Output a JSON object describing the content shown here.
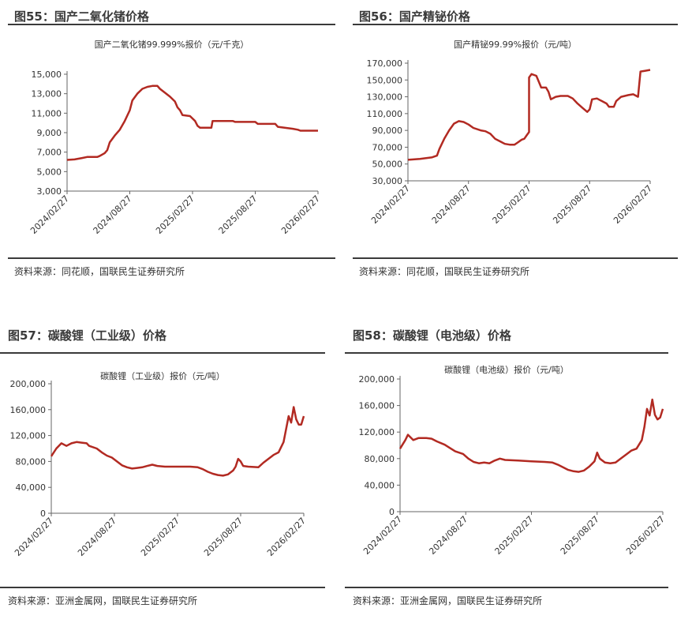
{
  "panels": [
    {
      "fig_title": "图55：国产二氧化锗价格",
      "source": "资料来源：同花顺，国联民生证券研究所",
      "chart": {
        "type": "line",
        "title": "国产二氧化锗99.999%报价（元/千克）",
        "ylim": [
          3000,
          15000
        ],
        "yticks": [
          "3,000",
          "5,000",
          "7,000",
          "9,000",
          "11,000",
          "13,000",
          "15,000"
        ],
        "ytick_values": [
          3000,
          5000,
          7000,
          9000,
          11000,
          13000,
          15000
        ],
        "xticks": [
          "2024/02/27",
          "2024/08/27",
          "2025/02/27",
          "2025/08/27",
          "2026/02/27"
        ],
        "line_color": "#b22a22",
        "series": [
          {
            "values": [
              [
                0,
                6200
              ],
              [
                0.03,
                6250
              ],
              [
                0.06,
                6400
              ],
              [
                0.08,
                6500
              ],
              [
                0.12,
                6500
              ],
              [
                0.13,
                6600
              ],
              [
                0.15,
                6900
              ],
              [
                0.16,
                7200
              ],
              [
                0.17,
                8000
              ],
              [
                0.19,
                8700
              ],
              [
                0.21,
                9300
              ],
              [
                0.23,
                10200
              ],
              [
                0.25,
                11300
              ],
              [
                0.26,
                12300
              ],
              [
                0.28,
                13000
              ],
              [
                0.3,
                13500
              ],
              [
                0.32,
                13700
              ],
              [
                0.34,
                13800
              ],
              [
                0.36,
                13800
              ],
              [
                0.37,
                13500
              ],
              [
                0.39,
                13100
              ],
              [
                0.41,
                12700
              ],
              [
                0.43,
                12200
              ],
              [
                0.44,
                11600
              ],
              [
                0.45,
                11300
              ],
              [
                0.46,
                10800
              ],
              [
                0.49,
                10700
              ],
              [
                0.51,
                10200
              ],
              [
                0.52,
                9700
              ],
              [
                0.53,
                9500
              ],
              [
                0.56,
                9500
              ],
              [
                0.575,
                9500
              ],
              [
                0.58,
                10200
              ],
              [
                0.6,
                10200
              ],
              [
                0.66,
                10200
              ],
              [
                0.67,
                10100
              ],
              [
                0.75,
                10100
              ],
              [
                0.76,
                9900
              ],
              [
                0.83,
                9900
              ],
              [
                0.84,
                9600
              ],
              [
                0.9,
                9400
              ],
              [
                0.92,
                9300
              ],
              [
                0.93,
                9200
              ],
              [
                1.0,
                9200
              ]
            ]
          }
        ]
      }
    },
    {
      "fig_title": "图56：国产精铋价格",
      "source": "资料来源：同花顺，国联民生证券研究所",
      "chart": {
        "type": "line",
        "title": "国产精铋99.99%报价（元/吨）",
        "ylim": [
          30000,
          170000
        ],
        "yticks": [
          "30,000",
          "50,000",
          "70,000",
          "90,000",
          "110,000",
          "130,000",
          "150,000",
          "170,000"
        ],
        "ytick_values": [
          30000,
          50000,
          70000,
          90000,
          110000,
          130000,
          150000,
          170000
        ],
        "xticks": [
          "2024/02/27",
          "2024/08/27",
          "2025/02/27",
          "2025/08/27",
          "2026/02/27"
        ],
        "line_color": "#b22a22",
        "series": [
          {
            "values": [
              [
                0,
                55000
              ],
              [
                0.05,
                56000
              ],
              [
                0.1,
                58000
              ],
              [
                0.12,
                60000
              ],
              [
                0.13,
                68000
              ],
              [
                0.15,
                80000
              ],
              [
                0.17,
                90000
              ],
              [
                0.19,
                98000
              ],
              [
                0.21,
                101000
              ],
              [
                0.23,
                100000
              ],
              [
                0.25,
                97000
              ],
              [
                0.27,
                93000
              ],
              [
                0.3,
                90000
              ],
              [
                0.32,
                89000
              ],
              [
                0.34,
                86000
              ],
              [
                0.36,
                80000
              ],
              [
                0.38,
                77000
              ],
              [
                0.4,
                74000
              ],
              [
                0.42,
                73000
              ],
              [
                0.44,
                73000
              ],
              [
                0.45,
                75000
              ],
              [
                0.47,
                79000
              ],
              [
                0.48,
                80000
              ],
              [
                0.49,
                84000
              ],
              [
                0.5,
                88000
              ],
              [
                0.5,
                153000
              ],
              [
                0.51,
                157000
              ],
              [
                0.53,
                155000
              ],
              [
                0.54,
                148000
              ],
              [
                0.55,
                141000
              ],
              [
                0.57,
                141000
              ],
              [
                0.58,
                136000
              ],
              [
                0.59,
                127000
              ],
              [
                0.61,
                130000
              ],
              [
                0.63,
                131000
              ],
              [
                0.66,
                131000
              ],
              [
                0.68,
                128000
              ],
              [
                0.7,
                122000
              ],
              [
                0.72,
                117000
              ],
              [
                0.74,
                112000
              ],
              [
                0.75,
                115000
              ],
              [
                0.76,
                127000
              ],
              [
                0.78,
                128000
              ],
              [
                0.8,
                125000
              ],
              [
                0.82,
                122000
              ],
              [
                0.83,
                118000
              ],
              [
                0.85,
                118000
              ],
              [
                0.86,
                125000
              ],
              [
                0.88,
                130000
              ],
              [
                0.91,
                132000
              ],
              [
                0.93,
                133000
              ],
              [
                0.95,
                130000
              ],
              [
                0.96,
                160000
              ],
              [
                0.98,
                161000
              ],
              [
                1.0,
                162000
              ]
            ]
          }
        ]
      }
    },
    {
      "fig_title": "图57：碳酸锂（工业级）价格",
      "source": "资料来源：亚洲金属网，国联民生证券研究所",
      "chart": {
        "type": "line",
        "title": "碳酸锂（工业级）报价（元/吨）",
        "ylim": [
          0,
          200000
        ],
        "yticks": [
          "0",
          "40,000",
          "80,000",
          "120,000",
          "160,000",
          "200,000"
        ],
        "ytick_values": [
          0,
          40000,
          80000,
          120000,
          160000,
          200000
        ],
        "xticks": [
          "2024/02/27",
          "2024/08/27",
          "2025/02/27",
          "2025/08/27",
          "2026/02/27"
        ],
        "line_color": "#b22a22",
        "series": [
          {
            "values": [
              [
                0,
                88000
              ],
              [
                0.02,
                100000
              ],
              [
                0.04,
                108000
              ],
              [
                0.06,
                104000
              ],
              [
                0.08,
                108000
              ],
              [
                0.1,
                110000
              ],
              [
                0.12,
                109000
              ],
              [
                0.14,
                108000
              ],
              [
                0.15,
                104000
              ],
              [
                0.18,
                100000
              ],
              [
                0.2,
                94000
              ],
              [
                0.22,
                89000
              ],
              [
                0.24,
                86000
              ],
              [
                0.26,
                80000
              ],
              [
                0.28,
                74000
              ],
              [
                0.3,
                71000
              ],
              [
                0.32,
                69000
              ],
              [
                0.34,
                70000
              ],
              [
                0.36,
                71000
              ],
              [
                0.38,
                73000
              ],
              [
                0.4,
                75000
              ],
              [
                0.42,
                73000
              ],
              [
                0.45,
                72000
              ],
              [
                0.5,
                72000
              ],
              [
                0.55,
                72000
              ],
              [
                0.58,
                71000
              ],
              [
                0.6,
                68000
              ],
              [
                0.62,
                64000
              ],
              [
                0.64,
                61000
              ],
              [
                0.66,
                59000
              ],
              [
                0.68,
                58000
              ],
              [
                0.7,
                60000
              ],
              [
                0.72,
                66000
              ],
              [
                0.73,
                72000
              ],
              [
                0.74,
                84000
              ],
              [
                0.75,
                80000
              ],
              [
                0.76,
                73000
              ],
              [
                0.78,
                72000
              ],
              [
                0.82,
                71000
              ],
              [
                0.84,
                78000
              ],
              [
                0.86,
                84000
              ],
              [
                0.88,
                90000
              ],
              [
                0.9,
                94000
              ],
              [
                0.92,
                110000
              ],
              [
                0.93,
                130000
              ],
              [
                0.94,
                150000
              ],
              [
                0.95,
                140000
              ],
              [
                0.96,
                164000
              ],
              [
                0.97,
                145000
              ],
              [
                0.98,
                137000
              ],
              [
                0.99,
                137000
              ],
              [
                1.0,
                150000
              ]
            ]
          }
        ]
      }
    },
    {
      "fig_title": "图58：碳酸锂（电池级）价格",
      "source": "资料来源：亚洲金属网，国联民生证券研究所",
      "chart": {
        "type": "line",
        "title": "碳酸锂（电池级）报价（元/吨）",
        "ylim": [
          0,
          200000
        ],
        "yticks": [
          "0",
          "40,000",
          "80,000",
          "120,000",
          "160,000",
          "200,000"
        ],
        "ytick_values": [
          0,
          40000,
          80000,
          120000,
          160000,
          200000
        ],
        "xticks": [
          "2024/02/27",
          "2024/08/27",
          "2025/02/27",
          "2025/08/27",
          "2026/02/27"
        ],
        "line_color": "#b22a22",
        "series": [
          {
            "values": [
              [
                0,
                95000
              ],
              [
                0.02,
                108000
              ],
              [
                0.03,
                116000
              ],
              [
                0.05,
                108000
              ],
              [
                0.07,
                111000
              ],
              [
                0.1,
                111000
              ],
              [
                0.12,
                110000
              ],
              [
                0.14,
                106000
              ],
              [
                0.17,
                101000
              ],
              [
                0.19,
                96000
              ],
              [
                0.21,
                91000
              ],
              [
                0.24,
                87000
              ],
              [
                0.26,
                80000
              ],
              [
                0.28,
                75000
              ],
              [
                0.3,
                73000
              ],
              [
                0.32,
                74000
              ],
              [
                0.34,
                73000
              ],
              [
                0.36,
                77000
              ],
              [
                0.38,
                80000
              ],
              [
                0.4,
                78000
              ],
              [
                0.45,
                77000
              ],
              [
                0.5,
                76000
              ],
              [
                0.55,
                75000
              ],
              [
                0.58,
                74000
              ],
              [
                0.6,
                71000
              ],
              [
                0.62,
                67000
              ],
              [
                0.64,
                63000
              ],
              [
                0.66,
                61000
              ],
              [
                0.68,
                60000
              ],
              [
                0.7,
                62000
              ],
              [
                0.72,
                68000
              ],
              [
                0.74,
                76000
              ],
              [
                0.75,
                89000
              ],
              [
                0.76,
                80000
              ],
              [
                0.78,
                74000
              ],
              [
                0.8,
                73000
              ],
              [
                0.82,
                74000
              ],
              [
                0.84,
                80000
              ],
              [
                0.86,
                86000
              ],
              [
                0.88,
                92000
              ],
              [
                0.9,
                95000
              ],
              [
                0.92,
                108000
              ],
              [
                0.93,
                128000
              ],
              [
                0.94,
                155000
              ],
              [
                0.95,
                145000
              ],
              [
                0.96,
                169000
              ],
              [
                0.97,
                146000
              ],
              [
                0.98,
                139000
              ],
              [
                0.99,
                142000
              ],
              [
                1.0,
                155000
              ]
            ]
          }
        ]
      }
    }
  ]
}
